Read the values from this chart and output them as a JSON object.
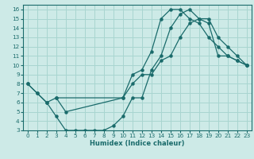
{
  "xlabel": "Humidex (Indice chaleur)",
  "xlim": [
    -0.5,
    23.5
  ],
  "ylim": [
    3,
    16.5
  ],
  "xticks": [
    0,
    1,
    2,
    3,
    4,
    5,
    6,
    7,
    8,
    9,
    10,
    11,
    12,
    13,
    14,
    15,
    16,
    17,
    18,
    19,
    20,
    21,
    22,
    23
  ],
  "yticks": [
    3,
    4,
    5,
    6,
    7,
    8,
    9,
    10,
    11,
    12,
    13,
    14,
    15,
    16
  ],
  "bg_color": "#cdeae7",
  "grid_color": "#a8d5d0",
  "line_color": "#1a6b6b",
  "line1_x": [
    0,
    1,
    2,
    3,
    10,
    11,
    12,
    13,
    14,
    15,
    16,
    17,
    18,
    19,
    20,
    21,
    22,
    23
  ],
  "line1_y": [
    8,
    7,
    6,
    6.5,
    6.5,
    9,
    9.5,
    11.5,
    15,
    16,
    16,
    15,
    14.5,
    13,
    12,
    11,
    10.5,
    10
  ],
  "line2_x": [
    0,
    1,
    2,
    3,
    4,
    5,
    6,
    7,
    8,
    9,
    10,
    11,
    12,
    13,
    14,
    15,
    16,
    17,
    18,
    19,
    20,
    21,
    22,
    23
  ],
  "line2_y": [
    8,
    7,
    6,
    4.5,
    3,
    3,
    3,
    3,
    3,
    3.5,
    4.5,
    6.5,
    6.5,
    9.5,
    11,
    14,
    15.5,
    16,
    15,
    14.5,
    11,
    11,
    10.5,
    10
  ],
  "line3_x": [
    3,
    4,
    10,
    11,
    12,
    13,
    14,
    15,
    16,
    17,
    18,
    19,
    20,
    21,
    22,
    23
  ],
  "line3_y": [
    6.5,
    5,
    6.5,
    8,
    9,
    9,
    10.5,
    11,
    13,
    14.5,
    15,
    15,
    13,
    12,
    11,
    10
  ]
}
